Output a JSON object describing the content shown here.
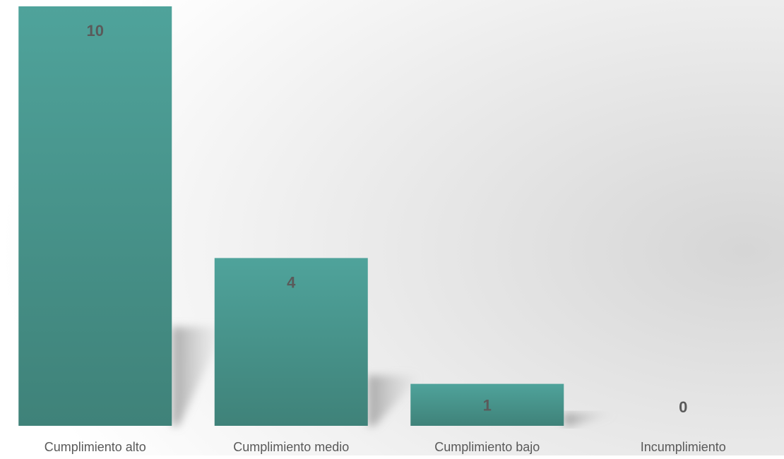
{
  "chart_data": {
    "type": "bar",
    "categories": [
      "Cumplimiento alto",
      "Cumplimiento medio",
      "Cumplimiento bajo",
      "Incumplimiento"
    ],
    "values": [
      10,
      4,
      1,
      0
    ],
    "data_labels": [
      "10",
      "4",
      "1",
      "0"
    ],
    "title": "",
    "xlabel": "",
    "ylabel": "",
    "ylim": [
      0,
      10
    ],
    "grid": false,
    "legend": "none"
  },
  "colors": {
    "bar_top": "#4fa39b",
    "bar_bottom": "#3f8279",
    "data_label": "#5a5a5a",
    "category_label": "#595959",
    "background_light": "#ffffff",
    "background_dark": "#d8d8d8",
    "shadow": "#9a9a9a"
  }
}
